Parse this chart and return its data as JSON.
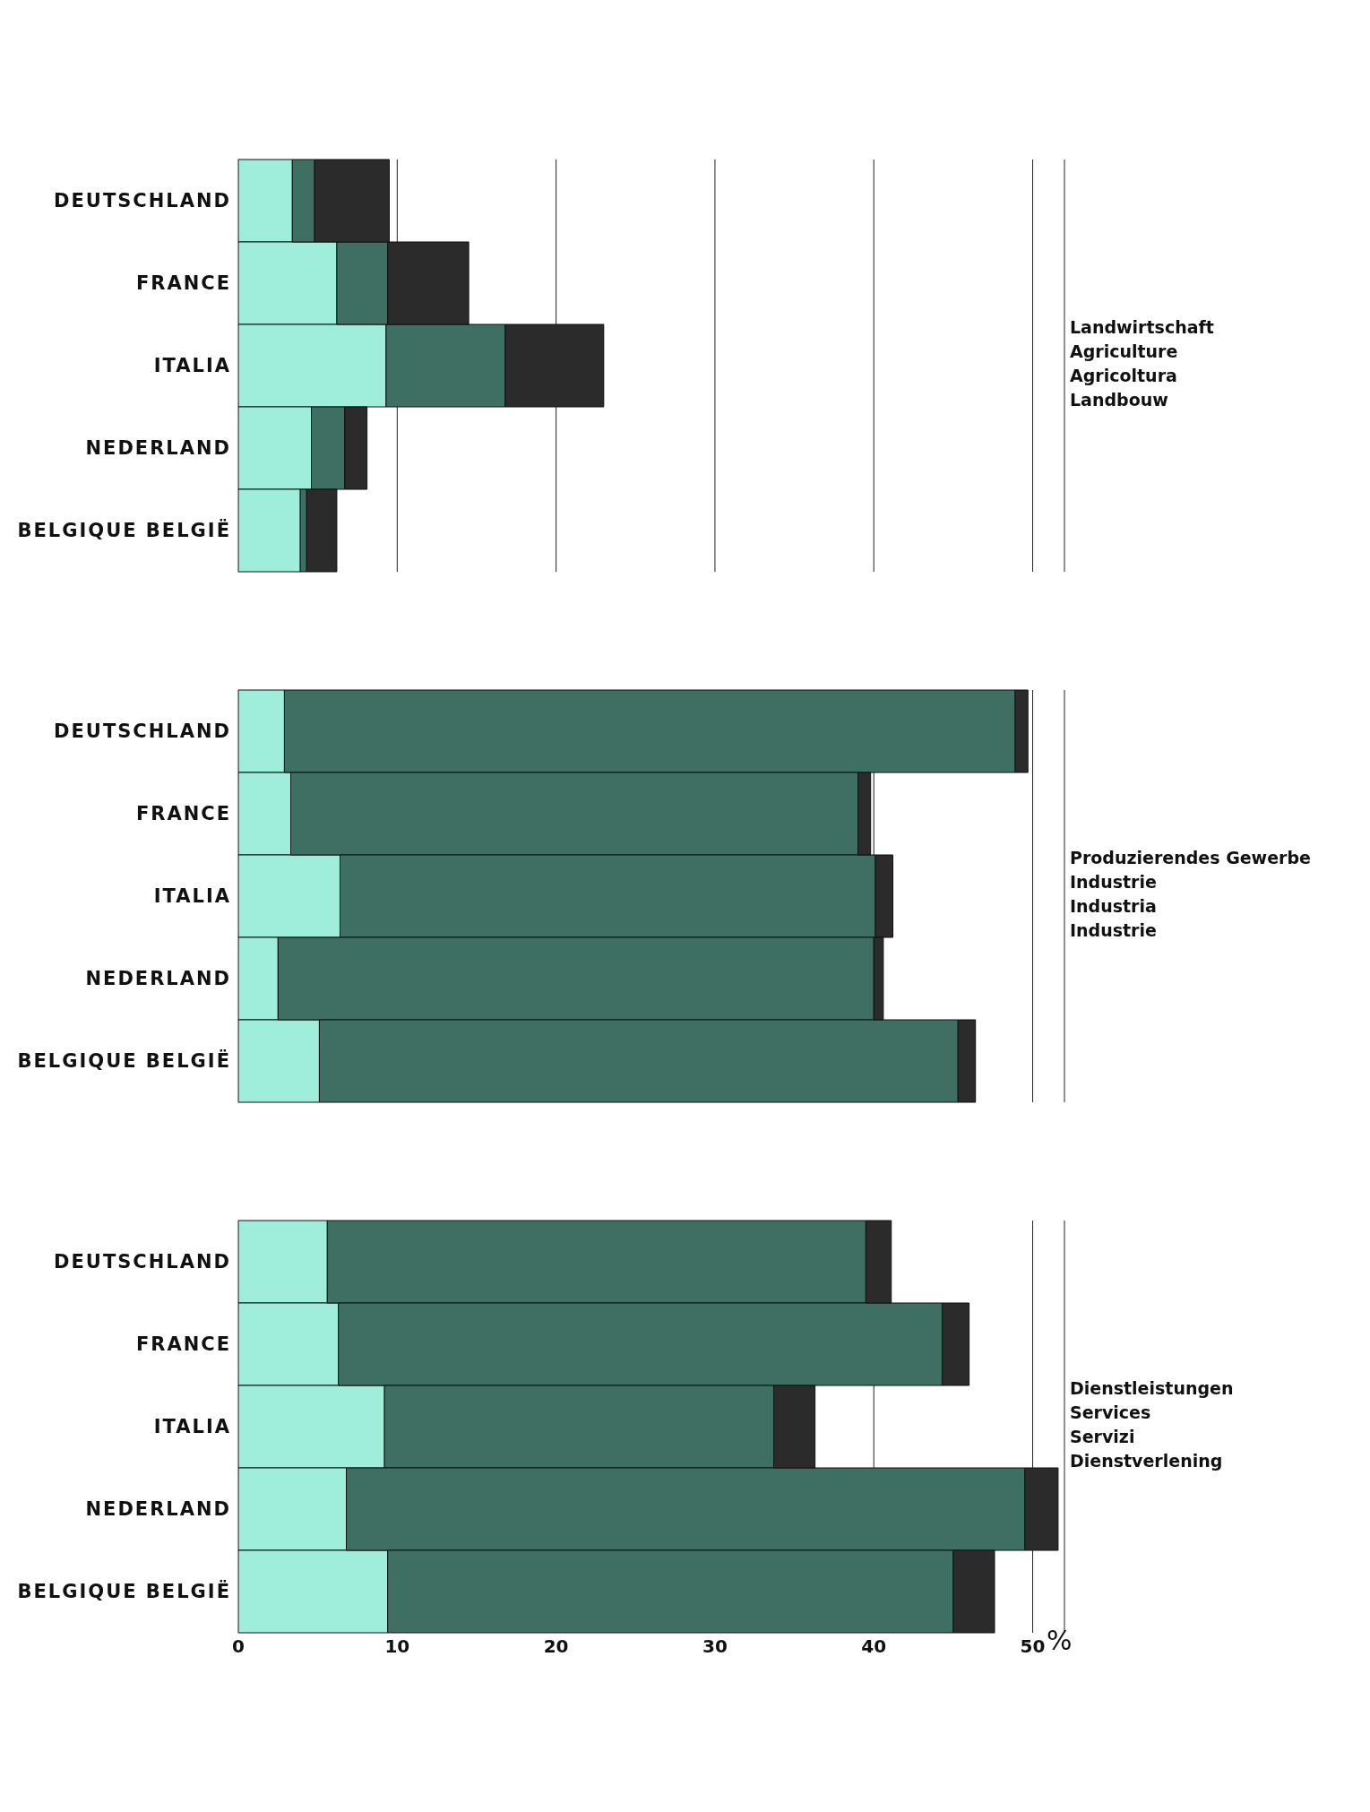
{
  "chart_data": [
    {
      "type": "bar",
      "orientation": "horizontal",
      "stacked": true,
      "categories": [
        "DEUTSCHLAND",
        "FRANCE",
        "ITALIA",
        "NEDERLAND",
        "BELGIQUE BELGIË"
      ],
      "series": [
        {
          "color": "#9eeedb",
          "values": [
            3.4,
            6.2,
            9.3,
            4.6,
            3.9
          ]
        },
        {
          "color": "#3f6e62",
          "values": [
            1.4,
            3.2,
            7.5,
            2.1,
            0.4
          ]
        },
        {
          "color": "#2b2b2b",
          "values": [
            4.7,
            5.1,
            6.2,
            1.4,
            1.9
          ]
        }
      ],
      "xlim": [
        0,
        52
      ],
      "xticks": [
        0,
        10,
        20,
        30,
        40,
        50
      ],
      "grid": "x",
      "tick_labels": "y",
      "annotations": [
        "Landwirtschaft",
        "Agriculture",
        "Agricoltura",
        "Landbouw"
      ]
    },
    {
      "type": "bar",
      "orientation": "horizontal",
      "stacked": true,
      "categories": [
        "DEUTSCHLAND",
        "FRANCE",
        "ITALIA",
        "NEDERLAND",
        "BELGIQUE BELGIË"
      ],
      "series": [
        {
          "color": "#9eeedb",
          "values": [
            2.9,
            3.3,
            6.4,
            2.5,
            5.1
          ]
        },
        {
          "color": "#3f6e62",
          "values": [
            46.0,
            35.7,
            33.7,
            37.5,
            40.2
          ]
        },
        {
          "color": "#2b2b2b",
          "values": [
            0.8,
            0.8,
            1.1,
            0.6,
            1.1
          ]
        }
      ],
      "xlim": [
        0,
        52
      ],
      "xticks": [
        0,
        10,
        20,
        30,
        40,
        50
      ],
      "grid": "x",
      "tick_labels": "y",
      "annotations": [
        "Produzierendes Gewerbe",
        "Industrie",
        "Industria",
        "Industrie"
      ]
    },
    {
      "type": "bar",
      "orientation": "horizontal",
      "stacked": true,
      "categories": [
        "DEUTSCHLAND",
        "FRANCE",
        "ITALIA",
        "NEDERLAND",
        "BELGIQUE BELGIË"
      ],
      "series": [
        {
          "color": "#9eeedb",
          "values": [
            5.6,
            6.3,
            9.2,
            6.8,
            9.4
          ]
        },
        {
          "color": "#3f6e62",
          "values": [
            33.9,
            38.0,
            24.5,
            42.7,
            35.6
          ]
        },
        {
          "color": "#2b2b2b",
          "values": [
            1.6,
            1.7,
            2.6,
            2.1,
            2.6
          ]
        }
      ],
      "xlim": [
        0,
        52
      ],
      "xticks": [
        0,
        10,
        20,
        30,
        40,
        50
      ],
      "grid": "x",
      "xlabel": "%",
      "annotations": [
        "Dienstleistungen",
        "Services",
        "Servizi",
        "Dienstverlening"
      ]
    }
  ]
}
